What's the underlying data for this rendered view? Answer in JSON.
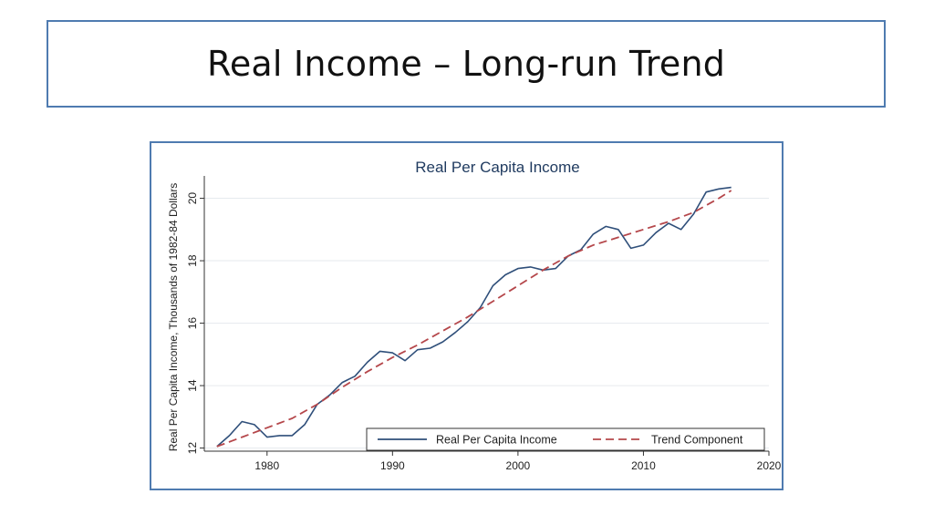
{
  "slide": {
    "title": "Real Income – Long-run Trend"
  },
  "colors": {
    "frame": "#4f7bb0",
    "series_actual": "#2f4f7a",
    "series_trend": "#b5474b",
    "grid": "#e6eaee"
  },
  "chart_data": {
    "type": "line",
    "title": "Real Per Capita Income",
    "xlabel": "",
    "ylabel": "Real Per Capita Income, Thousands of 1982-84 Dollars",
    "xlim": [
      1975,
      2020
    ],
    "ylim": [
      11.9,
      20.6
    ],
    "xticks": [
      1980,
      1990,
      2000,
      2010,
      2020
    ],
    "yticks": [
      12,
      14,
      16,
      18,
      20
    ],
    "grid": true,
    "legend_position": "bottom-right",
    "series": [
      {
        "name": "Real Per Capita Income",
        "style": "solid",
        "x": [
          1976,
          1977,
          1978,
          1979,
          1980,
          1981,
          1982,
          1983,
          1984,
          1985,
          1986,
          1987,
          1988,
          1989,
          1990,
          1991,
          1992,
          1993,
          1994,
          1995,
          1996,
          1997,
          1998,
          1999,
          2000,
          2001,
          2002,
          2003,
          2004,
          2005,
          2006,
          2007,
          2008,
          2009,
          2010,
          2011,
          2012,
          2013,
          2014,
          2015,
          2016,
          2017
        ],
        "values": [
          12.05,
          12.4,
          12.85,
          12.75,
          12.35,
          12.4,
          12.4,
          12.75,
          13.4,
          13.7,
          14.1,
          14.3,
          14.75,
          15.1,
          15.05,
          14.8,
          15.15,
          15.2,
          15.4,
          15.7,
          16.05,
          16.5,
          17.2,
          17.55,
          17.75,
          17.8,
          17.7,
          17.75,
          18.15,
          18.35,
          18.85,
          19.1,
          19.0,
          18.4,
          18.5,
          18.9,
          19.2,
          19.0,
          19.5,
          20.2,
          20.3,
          20.35
        ]
      },
      {
        "name": "Trend Component",
        "style": "dashed",
        "x": [
          1976,
          1978,
          1980,
          1982,
          1984,
          1986,
          1988,
          1990,
          1992,
          1994,
          1996,
          1998,
          2000,
          2002,
          2004,
          2006,
          2008,
          2010,
          2012,
          2014,
          2016,
          2017
        ],
        "values": [
          12.05,
          12.35,
          12.65,
          12.95,
          13.4,
          13.95,
          14.45,
          14.9,
          15.3,
          15.75,
          16.2,
          16.7,
          17.2,
          17.7,
          18.15,
          18.5,
          18.75,
          19.0,
          19.25,
          19.55,
          20.0,
          20.25
        ]
      }
    ]
  }
}
